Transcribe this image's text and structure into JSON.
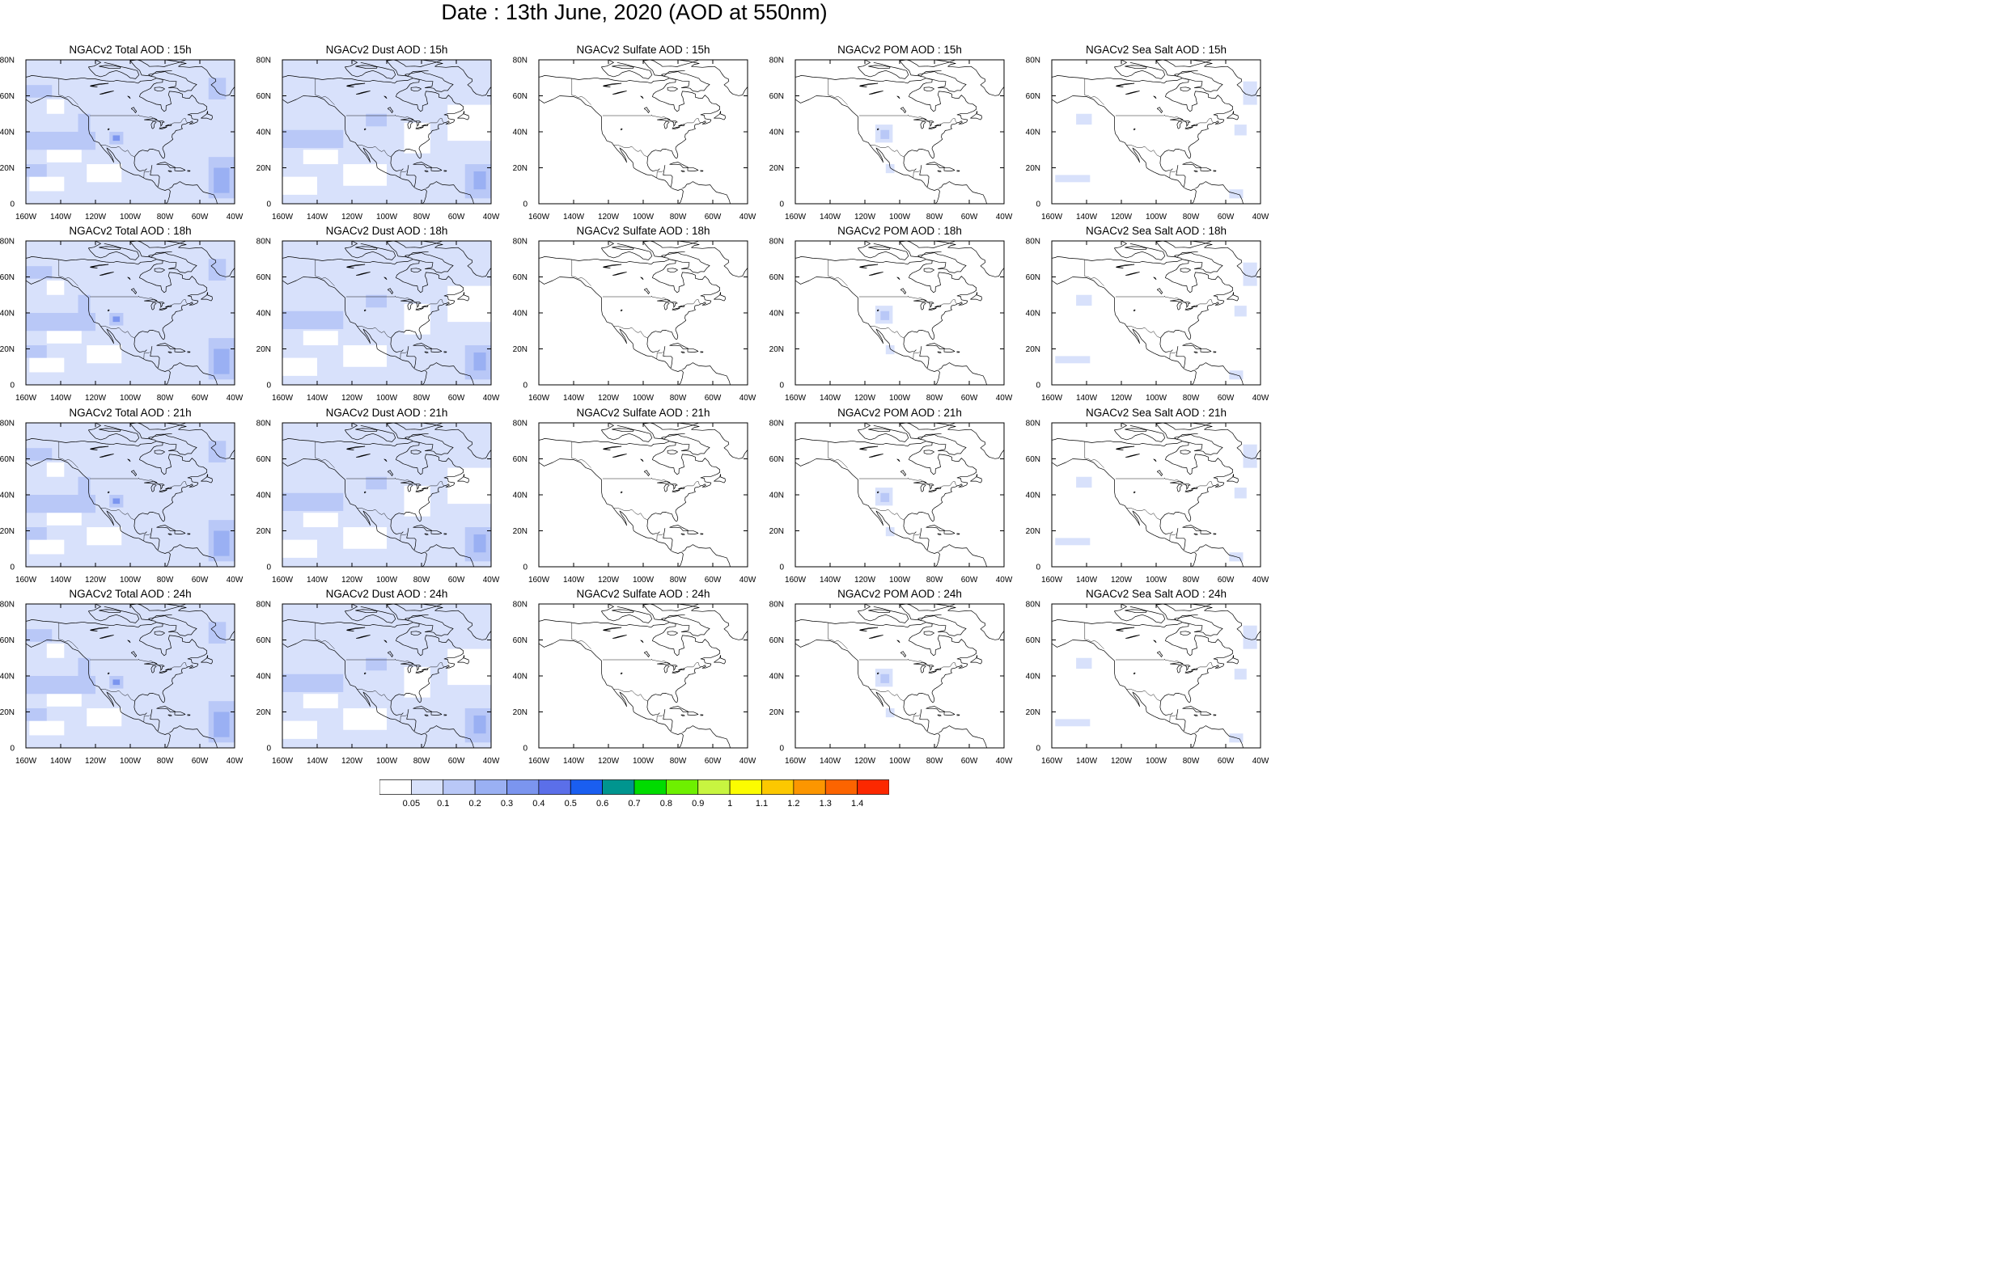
{
  "title": "Date : 13th June, 2020 (AOD at 550nm)",
  "panels": [
    {
      "title": "NGACv2 Total AOD : 15h"
    },
    {
      "title": "NGACv2 Dust AOD : 15h"
    },
    {
      "title": "NGACv2 Sulfate AOD : 15h"
    },
    {
      "title": "NGACv2 POM AOD : 15h"
    },
    {
      "title": "NGACv2 Sea Salt AOD : 15h"
    },
    {
      "title": "NGACv2 Total AOD : 18h"
    },
    {
      "title": "NGACv2 Dust AOD : 18h"
    },
    {
      "title": "NGACv2 Sulfate AOD : 18h"
    },
    {
      "title": "NGACv2 POM AOD : 18h"
    },
    {
      "title": "NGACv2 Sea Salt AOD : 18h"
    },
    {
      "title": "NGACv2 Total AOD : 21h"
    },
    {
      "title": "NGACv2 Dust AOD : 21h"
    },
    {
      "title": "NGACv2 Sulfate AOD : 21h"
    },
    {
      "title": "NGACv2 POM AOD : 21h"
    },
    {
      "title": "NGACv2 Sea Salt AOD : 21h"
    },
    {
      "title": "NGACv2 Total AOD : 24h"
    },
    {
      "title": "NGACv2 Dust AOD : 24h"
    },
    {
      "title": "NGACv2 Sulfate AOD : 24h"
    },
    {
      "title": "NGACv2 POM AOD : 24h"
    },
    {
      "title": "NGACv2 Sea Salt  AOD : 24h"
    }
  ],
  "map": {
    "lon_range": [
      -160,
      -40
    ],
    "lat_range": [
      0,
      80
    ],
    "lon_ticks": [
      "160W",
      "140W",
      "120W",
      "100W",
      "80W",
      "60W",
      "40W"
    ],
    "lat_ticks": [
      "0",
      "20N",
      "40N",
      "60N",
      "80N"
    ]
  },
  "colorbar": {
    "labels": [
      "0.05",
      "0.1",
      "0.2",
      "0.3",
      "0.4",
      "0.5",
      "0.6",
      "0.7",
      "0.8",
      "0.9",
      "1",
      "1.1",
      "1.2",
      "1.3",
      "1.4"
    ],
    "colors": [
      "#ffffff",
      "#d8e1fb",
      "#b9c8f7",
      "#9ab0f3",
      "#7b95ef",
      "#5b6fe9",
      "#1a5ef0",
      "#00958f",
      "#00dc00",
      "#6ef000",
      "#c8f540",
      "#fcfc00",
      "#fcc800",
      "#fc9600",
      "#fc6400",
      "#fc2800"
    ]
  },
  "aod_fields": {
    "Total": {
      "background_level": 1,
      "clear_regions": [
        [
          -148,
          23,
          -128,
          31
        ],
        [
          -125,
          12,
          -105,
          22
        ],
        [
          -158,
          7,
          -138,
          15
        ],
        [
          -148,
          50,
          -138,
          58
        ]
      ],
      "enhanced_regions": [
        [
          -160,
          30,
          -120,
          40,
          2
        ],
        [
          -160,
          15,
          -148,
          22,
          2
        ],
        [
          -160,
          59,
          -145,
          66,
          2
        ],
        [
          -55,
          3,
          -40,
          26,
          2
        ],
        [
          -52,
          6,
          -43,
          20,
          3
        ],
        [
          -112,
          33,
          -104,
          40,
          2
        ],
        [
          -110,
          35,
          -106,
          38,
          4
        ],
        [
          -130,
          40,
          -123,
          50,
          2
        ],
        [
          -55,
          58,
          -45,
          70,
          2
        ]
      ]
    },
    "Dust": {
      "background_level": 1,
      "clear_regions": [
        [
          -148,
          22,
          -128,
          30
        ],
        [
          -125,
          10,
          -100,
          22
        ],
        [
          -160,
          5,
          -140,
          15
        ],
        [
          -90,
          28,
          -75,
          45
        ],
        [
          -65,
          35,
          -40,
          55
        ]
      ],
      "enhanced_regions": [
        [
          -160,
          31,
          -125,
          41,
          2
        ],
        [
          -55,
          3,
          -40,
          22,
          2
        ],
        [
          -50,
          8,
          -43,
          18,
          3
        ],
        [
          -112,
          43,
          -100,
          50,
          2
        ]
      ]
    },
    "Sulfate": {
      "background_level": 0,
      "clear_regions": [],
      "enhanced_regions": []
    },
    "POM": {
      "background_level": 0,
      "clear_regions": [],
      "enhanced_regions": [
        [
          -114,
          34,
          -104,
          44,
          1
        ],
        [
          -111,
          36,
          -106,
          41,
          2
        ],
        [
          -108,
          17,
          -103,
          22,
          1
        ]
      ]
    },
    "SeaSalt": {
      "background_level": 0,
      "clear_regions": [],
      "enhanced_regions": [
        [
          -146,
          44,
          -137,
          50,
          1
        ],
        [
          -50,
          55,
          -42,
          68,
          1
        ],
        [
          -55,
          38,
          -48,
          44,
          1
        ],
        [
          -158,
          12,
          -138,
          16,
          1
        ],
        [
          -58,
          3,
          -50,
          8,
          1
        ]
      ]
    }
  }
}
